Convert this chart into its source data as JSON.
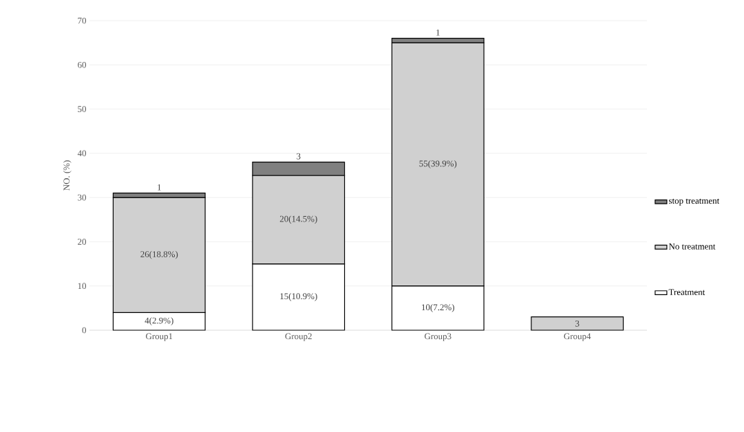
{
  "chart_data": {
    "type": "bar",
    "stacked": true,
    "ylabel": "NO. (%)",
    "categories": [
      "Group1",
      "Group2",
      "Group3",
      "Group4"
    ],
    "series": [
      {
        "name": "Treatment",
        "color": "#ffffff",
        "values": [
          4,
          15,
          10,
          null
        ],
        "value_labels": [
          "4(2.9%)",
          "15(10.9%)",
          "10(7.2%)",
          null
        ]
      },
      {
        "name": "No treatment",
        "color": "#d0d0d0",
        "values": [
          26,
          20,
          55,
          3
        ],
        "value_labels": [
          "26(18.8%)",
          "20(14.5%)",
          "55(39.9%)",
          "3"
        ]
      },
      {
        "name": "stop treatment",
        "color": "#808080",
        "values": [
          1,
          3,
          1,
          null
        ],
        "value_labels": [
          "1",
          "3",
          "1",
          null
        ]
      }
    ],
    "ylim": [
      0,
      70
    ],
    "yticks": [
      0,
      10,
      20,
      30,
      40,
      50,
      60,
      70
    ],
    "grid": "y",
    "legend": "right"
  }
}
